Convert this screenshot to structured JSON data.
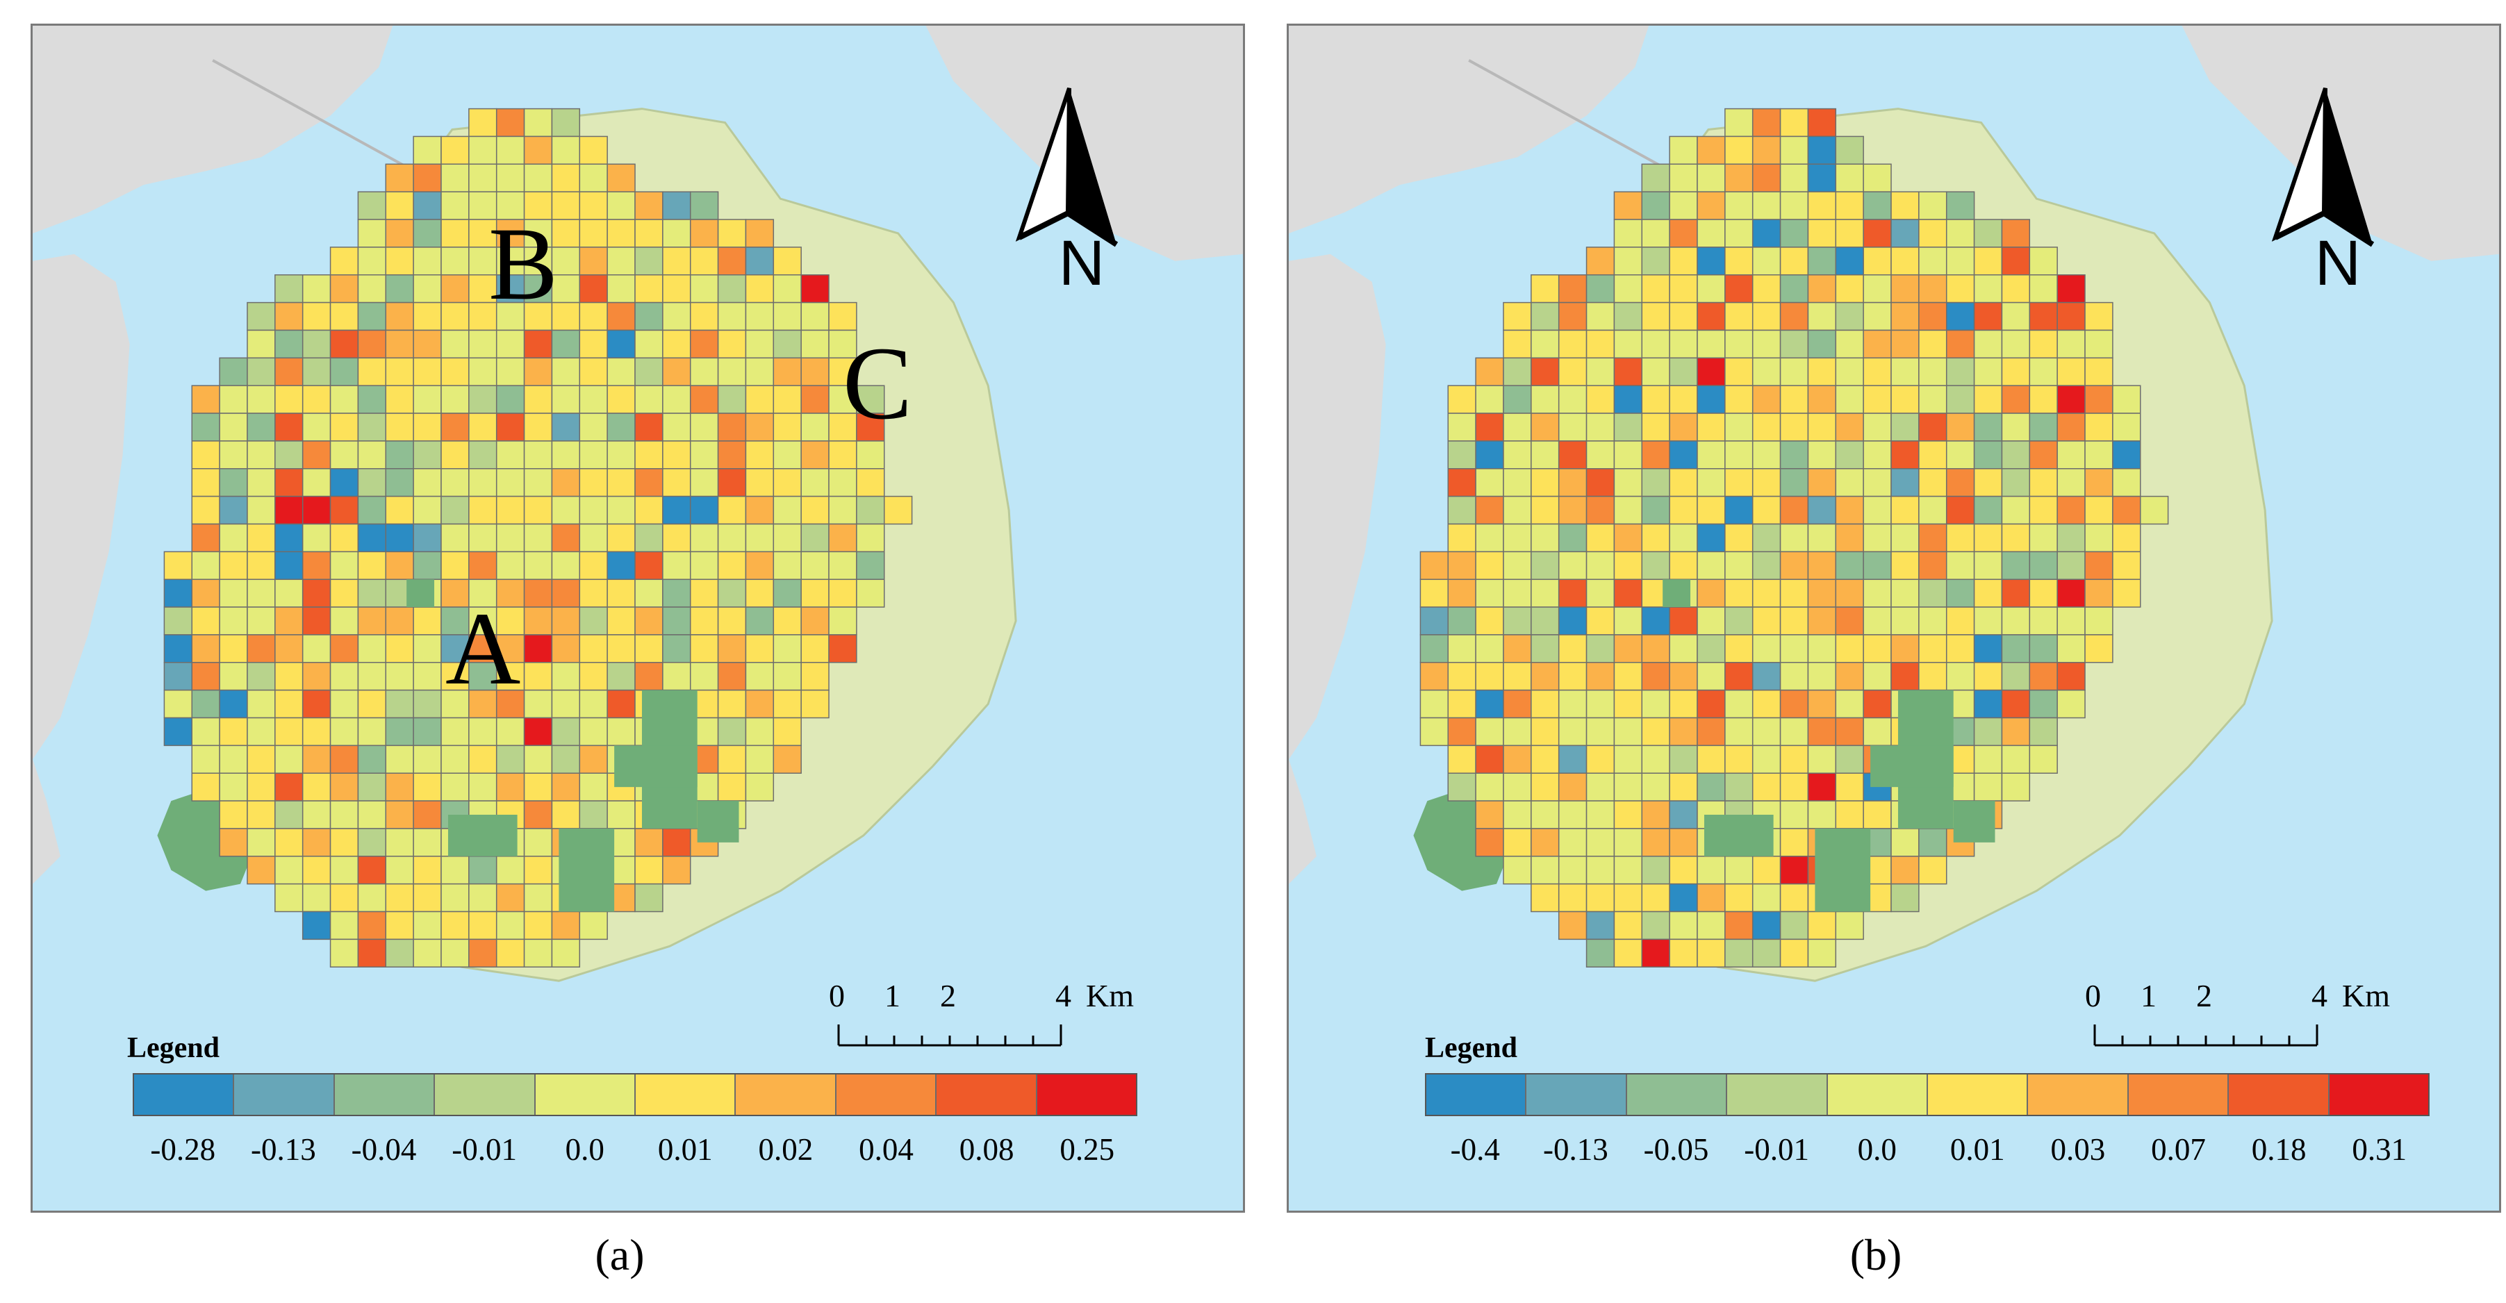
{
  "palette": {
    "water": "#bfe6f7",
    "land": "#dcdcdc",
    "park_green": "#6fae78",
    "grid_line": "#6d6d6d",
    "classes": [
      "#2b8cc4",
      "#67a6b8",
      "#8fbe93",
      "#b8d38c",
      "#e4ec7a",
      "#fde25a",
      "#fbb24a",
      "#f6893a",
      "#ef5a29",
      "#e5191d"
    ]
  },
  "panels": [
    {
      "id": "a",
      "caption": "(a)",
      "zone_labels": [
        "A",
        "B",
        "C"
      ],
      "north_label": "N",
      "scale": {
        "ticks": [
          "0",
          "1",
          "2",
          "4"
        ],
        "unit": "Km"
      },
      "legend": {
        "title": "Legend",
        "classes": [
          "-0.28",
          "-0.13",
          "-0.04",
          "-0.01",
          "0.0",
          "0.01",
          "0.02",
          "0.04",
          "0.08",
          "0.25"
        ]
      }
    },
    {
      "id": "b",
      "caption": "(b)",
      "zone_labels": [],
      "north_label": "N",
      "scale": {
        "ticks": [
          "0",
          "1",
          "2",
          "4"
        ],
        "unit": "Km"
      },
      "legend": {
        "title": "Legend",
        "classes": [
          "-0.4",
          "-0.13",
          "-0.05",
          "-0.01",
          "0.0",
          "0.01",
          "0.03",
          "0.07",
          "0.18",
          "0.31"
        ]
      }
    }
  ]
}
